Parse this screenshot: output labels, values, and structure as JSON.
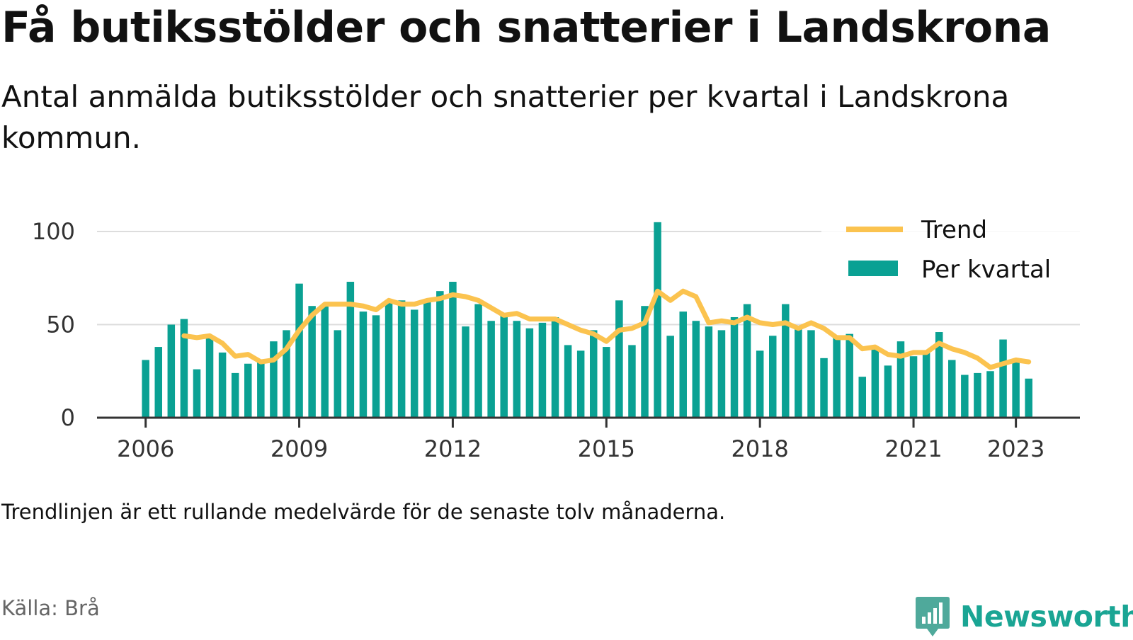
{
  "header": {
    "title": "Få butiksstölder och snatterier i Landskrona",
    "subtitle": "Antal anmälda butiksstölder och snatterier per kvartal i Landskrona kommun."
  },
  "footer": {
    "note": "Trendlinjen är ett rullande medelvärde för de senaste tolv månaderna.",
    "source": "Källa: Brå",
    "brand": "Newsworthy"
  },
  "colors": {
    "bar": "#0aa193",
    "trend": "#fbc34f",
    "grid": "#dddddd",
    "axis": "#333333",
    "brand": "#1aa594"
  },
  "chart_data": {
    "type": "bar",
    "title": "",
    "xlabel": "",
    "ylabel": "",
    "ylim": [
      0,
      100
    ],
    "yticks": [
      0,
      50,
      100
    ],
    "xticks": [
      2006,
      2009,
      2012,
      2015,
      2018,
      2021,
      2023
    ],
    "xlim": [
      2005.05,
      2024.25
    ],
    "grid": true,
    "legend_position": "top-right",
    "legend": [
      "Trend",
      "Per kvartal"
    ],
    "categories": [
      "2006 Q1",
      "2006 Q2",
      "2006 Q3",
      "2006 Q4",
      "2007 Q1",
      "2007 Q2",
      "2007 Q3",
      "2007 Q4",
      "2008 Q1",
      "2008 Q2",
      "2008 Q3",
      "2008 Q4",
      "2009 Q1",
      "2009 Q2",
      "2009 Q3",
      "2009 Q4",
      "2010 Q1",
      "2010 Q2",
      "2010 Q3",
      "2010 Q4",
      "2011 Q1",
      "2011 Q2",
      "2011 Q3",
      "2011 Q4",
      "2012 Q1",
      "2012 Q2",
      "2012 Q3",
      "2012 Q4",
      "2013 Q1",
      "2013 Q2",
      "2013 Q3",
      "2013 Q4",
      "2014 Q1",
      "2014 Q2",
      "2014 Q3",
      "2014 Q4",
      "2015 Q1",
      "2015 Q2",
      "2015 Q3",
      "2015 Q4",
      "2016 Q1",
      "2016 Q2",
      "2016 Q3",
      "2016 Q4",
      "2017 Q1",
      "2017 Q2",
      "2017 Q3",
      "2017 Q4",
      "2018 Q1",
      "2018 Q2",
      "2018 Q3",
      "2018 Q4",
      "2019 Q1",
      "2019 Q2",
      "2019 Q3",
      "2019 Q4",
      "2020 Q1",
      "2020 Q2",
      "2020 Q3",
      "2020 Q4",
      "2021 Q1",
      "2021 Q2",
      "2021 Q3",
      "2021 Q4",
      "2022 Q1",
      "2022 Q2",
      "2022 Q3",
      "2022 Q4",
      "2023 Q1",
      "2023 Q2"
    ],
    "series": [
      {
        "name": "Per kvartal",
        "type": "bar",
        "values": [
          31,
          38,
          50,
          53,
          26,
          43,
          35,
          24,
          29,
          30,
          41,
          47,
          72,
          60,
          60,
          47,
          73,
          57,
          55,
          62,
          63,
          58,
          62,
          68,
          73,
          49,
          61,
          52,
          55,
          52,
          48,
          51,
          54,
          39,
          36,
          47,
          38,
          63,
          39,
          60,
          105,
          44,
          57,
          52,
          49,
          47,
          54,
          61,
          36,
          44,
          61,
          49,
          47,
          32,
          44,
          45,
          22,
          38,
          28,
          41,
          33,
          35,
          46,
          31,
          23,
          24,
          25,
          42,
          31,
          21
        ]
      },
      {
        "name": "Trend",
        "type": "line",
        "values": [
          null,
          null,
          null,
          44,
          43,
          44,
          40,
          33,
          34,
          30,
          31,
          37,
          47,
          55,
          61,
          61,
          61,
          60,
          58,
          63,
          61,
          61,
          63,
          64,
          66,
          65,
          63,
          59,
          55,
          56,
          53,
          53,
          53,
          50,
          47,
          45,
          41,
          47,
          48,
          51,
          68,
          63,
          68,
          65,
          51,
          52,
          51,
          54,
          51,
          50,
          51,
          48,
          51,
          48,
          43,
          43,
          37,
          38,
          34,
          33,
          35,
          35,
          40,
          37,
          35,
          32,
          27,
          29,
          31,
          30
        ]
      }
    ]
  }
}
